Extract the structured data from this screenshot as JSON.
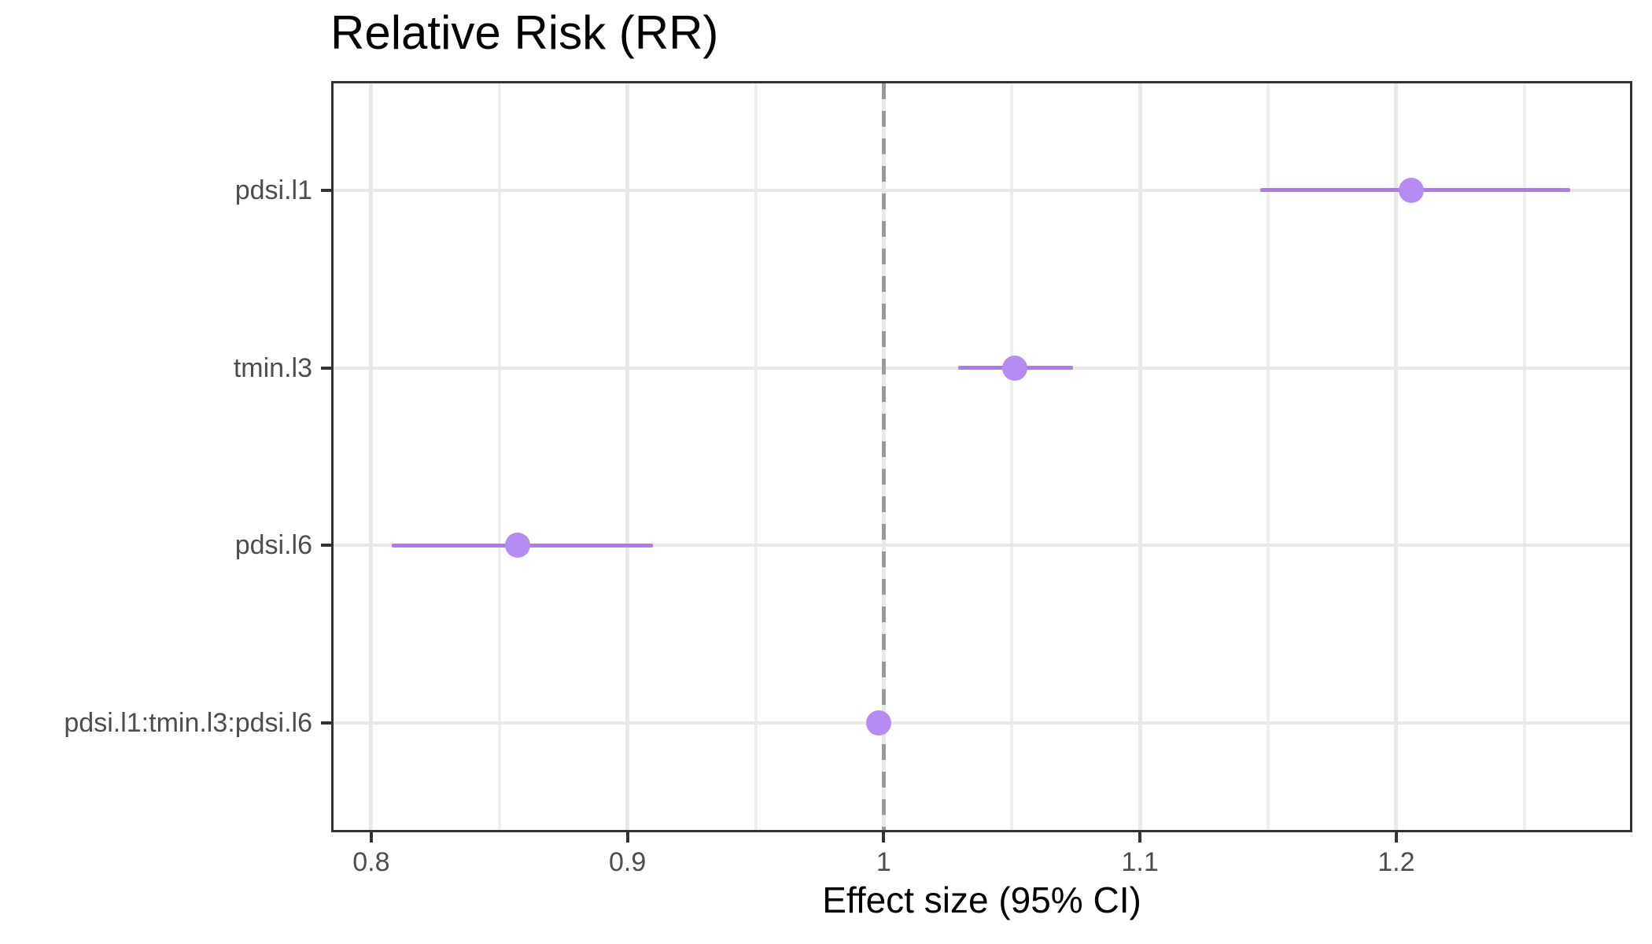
{
  "title": "Relative Risk (RR)",
  "chart_data": {
    "type": "scatter",
    "subtype": "forest-plot-pointrange",
    "title": "Relative Risk (RR)",
    "xlabel": "Effect size (95% CI)",
    "ylabel": "",
    "xlim": [
      0.7853,
      1.2912
    ],
    "x_major_ticks": [
      0.8,
      0.9,
      1.0,
      1.1,
      1.2
    ],
    "x_major_tick_labels": [
      "0.8",
      "0.9",
      "1",
      "1.1",
      "1.2"
    ],
    "x_minor_ticks": [
      0.85,
      0.95,
      1.05,
      1.15,
      1.25
    ],
    "grid": "major and minor vertical, major horizontal per category row",
    "legend": "none",
    "reference_line": {
      "x": 1,
      "style": "dashed"
    },
    "rows": [
      {
        "label": "pdsi.l1",
        "estimate": 1.206,
        "ci_low": 1.147,
        "ci_high": 1.268
      },
      {
        "label": "tmin.l3",
        "estimate": 1.051,
        "ci_low": 1.029,
        "ci_high": 1.074
      },
      {
        "label": "pdsi.l6",
        "estimate": 0.857,
        "ci_low": 0.808,
        "ci_high": 0.91
      },
      {
        "label": "pdsi.l1:tmin.l3:pdsi.l6",
        "estimate": 0.998,
        "ci_low": 0.995,
        "ci_high": 1.002
      }
    ],
    "colors": {
      "point": "#b58cf2",
      "ci_line": "#a97ce9",
      "reference_line": "#9a9a9a",
      "grid_major": "#e8e8e8",
      "grid_minor": "#eeeeee",
      "panel_border": "#333333",
      "tick_mark": "#333333",
      "tick_label": "#4d4d4d",
      "axis_title": "#000000",
      "title": "#000000"
    }
  }
}
